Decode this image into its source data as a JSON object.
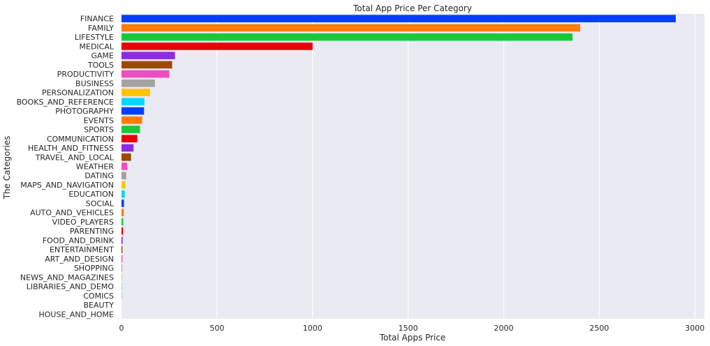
{
  "chart_data": {
    "type": "bar",
    "orientation": "horizontal",
    "title": "Total App Price Per Category",
    "xlabel": "Total Apps Price",
    "ylabel": "The Categories",
    "xlim": [
      0,
      3050
    ],
    "xticks": [
      0,
      500,
      1000,
      1500,
      2000,
      2500,
      3000
    ],
    "grid": true,
    "categories": [
      "FINANCE",
      "FAMILY",
      "LIFESTYLE",
      "MEDICAL",
      "GAME",
      "TOOLS",
      "PRODUCTIVITY",
      "BUSINESS",
      "PERSONALIZATION",
      "BOOKS_AND_REFERENCE",
      "PHOTOGRAPHY",
      "EVENTS",
      "SPORTS",
      "COMMUNICATION",
      "HEALTH_AND_FITNESS",
      "TRAVEL_AND_LOCAL",
      "WEATHER",
      "DATING",
      "MAPS_AND_NAVIGATION",
      "EDUCATION",
      "SOCIAL",
      "AUTO_AND_VEHICLES",
      "VIDEO_PLAYERS",
      "PARENTING",
      "FOOD_AND_DRINK",
      "ENTERTAINMENT",
      "ART_AND_DESIGN",
      "SHOPPING",
      "NEWS_AND_MAGAZINES",
      "LIBRARIES_AND_DEMO",
      "COMICS",
      "BEAUTY",
      "HOUSE_AND_HOME"
    ],
    "values": [
      2900,
      2400,
      2360,
      1000,
      280,
      265,
      250,
      175,
      150,
      120,
      118,
      108,
      97,
      83,
      63,
      50,
      30,
      25,
      20,
      17,
      13,
      12,
      9,
      8,
      6,
      5,
      5,
      4,
      3,
      2,
      1,
      0.5,
      0.3
    ],
    "colors": [
      "#023eff",
      "#ff7c00",
      "#1ac938",
      "#e8000b",
      "#8b2be2",
      "#9f4800",
      "#f14cc1",
      "#a3a3a3",
      "#ffc400",
      "#00d7ff"
    ]
  }
}
